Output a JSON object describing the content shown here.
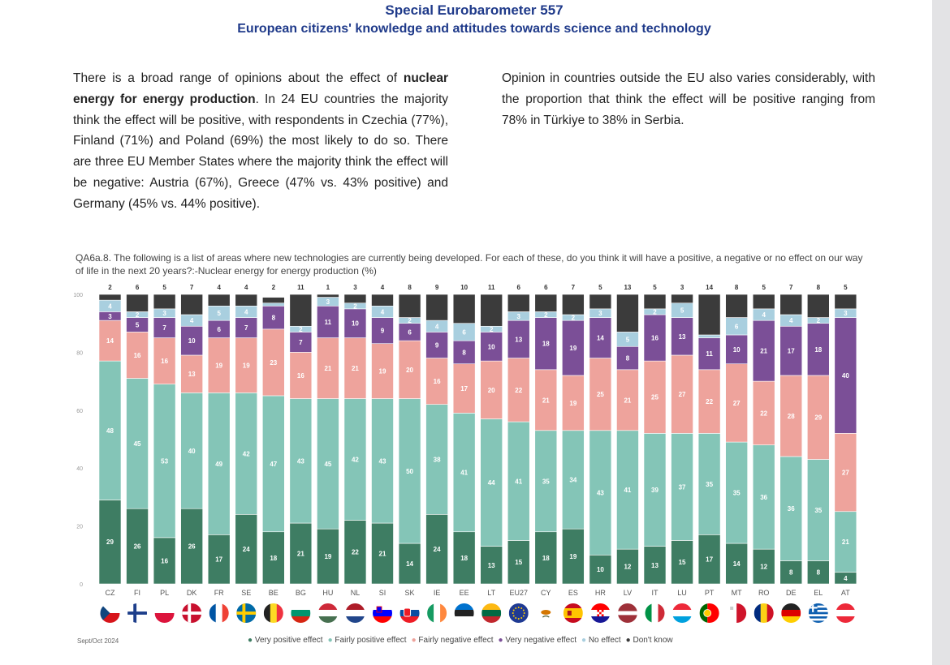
{
  "header": {
    "title": "Special Eurobarometer 557",
    "subtitle": "European citizens' knowledge and attitudes towards science and technology"
  },
  "text": {
    "col1": {
      "p1": "There is a broad range of opinions about the effect of ",
      "bold": "nuclear energy for energy production",
      "p2": ". In 24 EU countries the majority think the effect will be positive, with respondents in Czechia (77%), Finland (71%) and Poland (69%) the most likely to do so. There are three EU Member States where the majority think the effect will be negative: Austria (67%), Greece (47% vs. 43% positive) and Germany (45% vs. 44% positive)."
    },
    "col2": "Opinion in countries outside the EU also varies considerably, with the proportion that think the effect will be positive ranging from 78% in Türkiye to 38% in Serbia."
  },
  "chart_data": {
    "type": "bar",
    "stacked": true,
    "title": "QA6a.8. The following is a list of areas where new technologies are currently being developed. For each of these, do you think it will have a positive, a negative or no effect on our way of life in the next 20 years?:-Nuclear energy for energy production (%)",
    "ylim": [
      0,
      100
    ],
    "yticks": [
      0,
      20,
      40,
      60,
      80,
      100
    ],
    "categories": [
      "CZ",
      "FI",
      "PL",
      "DK",
      "FR",
      "SE",
      "BE",
      "BG",
      "HU",
      "NL",
      "SI",
      "SK",
      "IE",
      "EE",
      "LT",
      "EU27",
      "CY",
      "ES",
      "HR",
      "LV",
      "IT",
      "LU",
      "PT",
      "MT",
      "RO",
      "DE",
      "EL",
      "AT"
    ],
    "series": [
      {
        "name": "Very positive effect",
        "color": "#3e7d63",
        "values": [
          29,
          26,
          16,
          26,
          17,
          24,
          18,
          21,
          19,
          22,
          21,
          14,
          24,
          18,
          13,
          15,
          18,
          19,
          10,
          12,
          13,
          15,
          17,
          14,
          12,
          8,
          8,
          4
        ]
      },
      {
        "name": "Fairly positive effect",
        "color": "#84c5b7",
        "values": [
          48,
          45,
          53,
          40,
          49,
          42,
          47,
          43,
          45,
          42,
          43,
          50,
          38,
          41,
          44,
          41,
          35,
          34,
          43,
          41,
          39,
          37,
          35,
          35,
          36,
          36,
          35,
          21
        ]
      },
      {
        "name": "Fairly negative effect",
        "color": "#eea39c",
        "values": [
          14,
          16,
          16,
          13,
          19,
          19,
          23,
          16,
          21,
          21,
          19,
          20,
          16,
          17,
          20,
          22,
          21,
          19,
          25,
          21,
          25,
          27,
          22,
          27,
          22,
          28,
          29,
          27
        ]
      },
      {
        "name": "Very negative effect",
        "color": "#7b4f97",
        "values": [
          3,
          5,
          7,
          10,
          6,
          7,
          8,
          7,
          11,
          10,
          9,
          6,
          9,
          8,
          10,
          13,
          18,
          19,
          14,
          8,
          16,
          13,
          11,
          10,
          21,
          17,
          18,
          40
        ]
      },
      {
        "name": "No effect",
        "color": "#a9cfdf",
        "values": [
          4,
          2,
          3,
          4,
          5,
          4,
          1,
          2,
          3,
          2,
          4,
          2,
          4,
          6,
          2,
          3,
          2,
          2,
          3,
          5,
          2,
          5,
          1,
          6,
          4,
          4,
          2,
          3
        ]
      },
      {
        "name": "Don't know",
        "color": "#3b3b3b",
        "values": [
          2,
          6,
          5,
          7,
          4,
          4,
          2,
          11,
          1,
          3,
          4,
          8,
          9,
          10,
          11,
          6,
          6,
          7,
          5,
          13,
          5,
          3,
          14,
          8,
          5,
          7,
          8,
          5
        ]
      }
    ]
  },
  "flag_icons": [
    "czech-flag-icon",
    "finland-flag-icon",
    "poland-flag-icon",
    "denmark-flag-icon",
    "france-flag-icon",
    "sweden-flag-icon",
    "belgium-flag-icon",
    "bulgaria-flag-icon",
    "hungary-flag-icon",
    "netherlands-flag-icon",
    "slovenia-flag-icon",
    "slovakia-flag-icon",
    "ireland-flag-icon",
    "estonia-flag-icon",
    "lithuania-flag-icon",
    "eu-flag-icon",
    "cyprus-flag-icon",
    "spain-flag-icon",
    "croatia-flag-icon",
    "latvia-flag-icon",
    "italy-flag-icon",
    "luxembourg-flag-icon",
    "portugal-flag-icon",
    "malta-flag-icon",
    "romania-flag-icon",
    "germany-flag-icon",
    "greece-flag-icon",
    "austria-flag-icon"
  ],
  "source": "Sept/Oct 2024",
  "legend": [
    {
      "label": "Very positive effect",
      "color": "#3e7d63"
    },
    {
      "label": "Fairly positive effect",
      "color": "#84c5b7"
    },
    {
      "label": "Fairly negative effect",
      "color": "#eea39c"
    },
    {
      "label": "Very negative effect",
      "color": "#7b4f97"
    },
    {
      "label": "No effect",
      "color": "#a9cfdf"
    },
    {
      "label": "Don't know",
      "color": "#3b3b3b"
    }
  ]
}
